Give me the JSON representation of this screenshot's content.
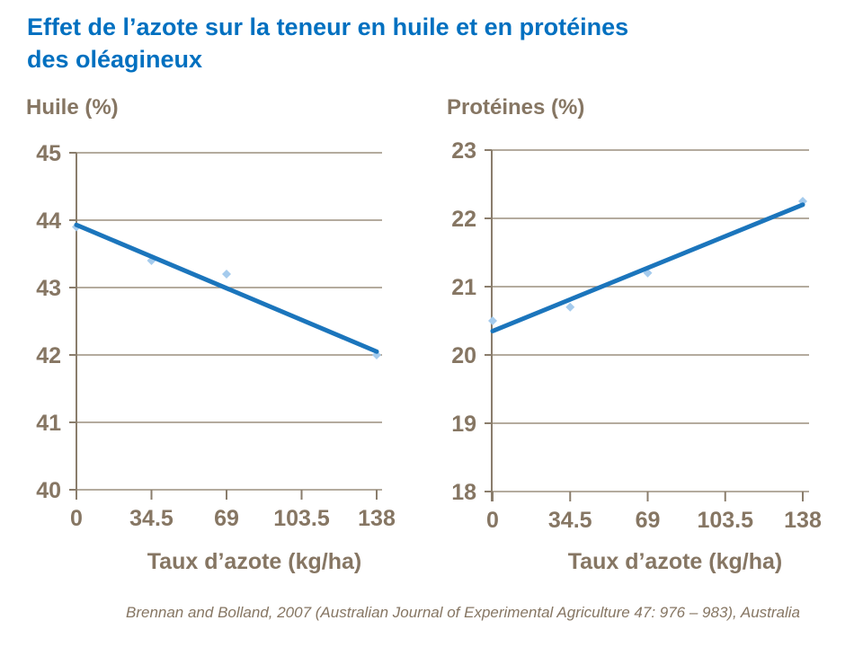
{
  "page": {
    "title_line1": "Effet de l’azote sur la teneur en huile et en protéines",
    "title_line2": "des oléagineux",
    "source": "Brennan and Bolland, 2007 (Australian Journal of Experimental Agriculture 47: 976 – 983), Australia"
  },
  "colors": {
    "title": "#0070C0",
    "trend_line": "#1B75BC",
    "marker": "#A5CBED",
    "text": "#867663",
    "grid": "#9C8F7E",
    "axis": "#8A7D6C"
  },
  "chart_data": [
    {
      "id": "huile",
      "type": "scatter",
      "title": "Huile (%)",
      "xlabel": "Taux d’azote (kg/ha)",
      "ylabel": "Huile (%)",
      "xticks": [
        "0",
        "34.5",
        "69",
        "103.5",
        "138"
      ],
      "yticks": [
        45,
        44,
        43,
        42,
        41,
        40
      ],
      "xlim": [
        0,
        138
      ],
      "ylim": [
        40,
        45
      ],
      "grid": "horizontal",
      "legend": "none",
      "points": [
        [
          0,
          43.9
        ],
        [
          34.5,
          43.4
        ],
        [
          69,
          43.2
        ],
        [
          138,
          42.0
        ]
      ],
      "trendline": {
        "x": [
          0,
          138
        ],
        "y": [
          43.93,
          42.05
        ]
      }
    },
    {
      "id": "proteines",
      "type": "scatter",
      "title": "Protéines (%)",
      "xlabel": "Taux d’azote (kg/ha)",
      "ylabel": "Protéines (%)",
      "xticks": [
        "0",
        "34.5",
        "69",
        "103.5",
        "138"
      ],
      "yticks": [
        23,
        22,
        21,
        20,
        19,
        18
      ],
      "xlim": [
        0,
        138
      ],
      "ylim": [
        18,
        23
      ],
      "grid": "horizontal",
      "legend": "none",
      "points": [
        [
          0,
          20.5
        ],
        [
          34.5,
          20.7
        ],
        [
          69,
          21.2
        ],
        [
          138,
          22.25
        ]
      ],
      "trendline": {
        "x": [
          0,
          138
        ],
        "y": [
          20.35,
          22.2
        ]
      }
    }
  ]
}
